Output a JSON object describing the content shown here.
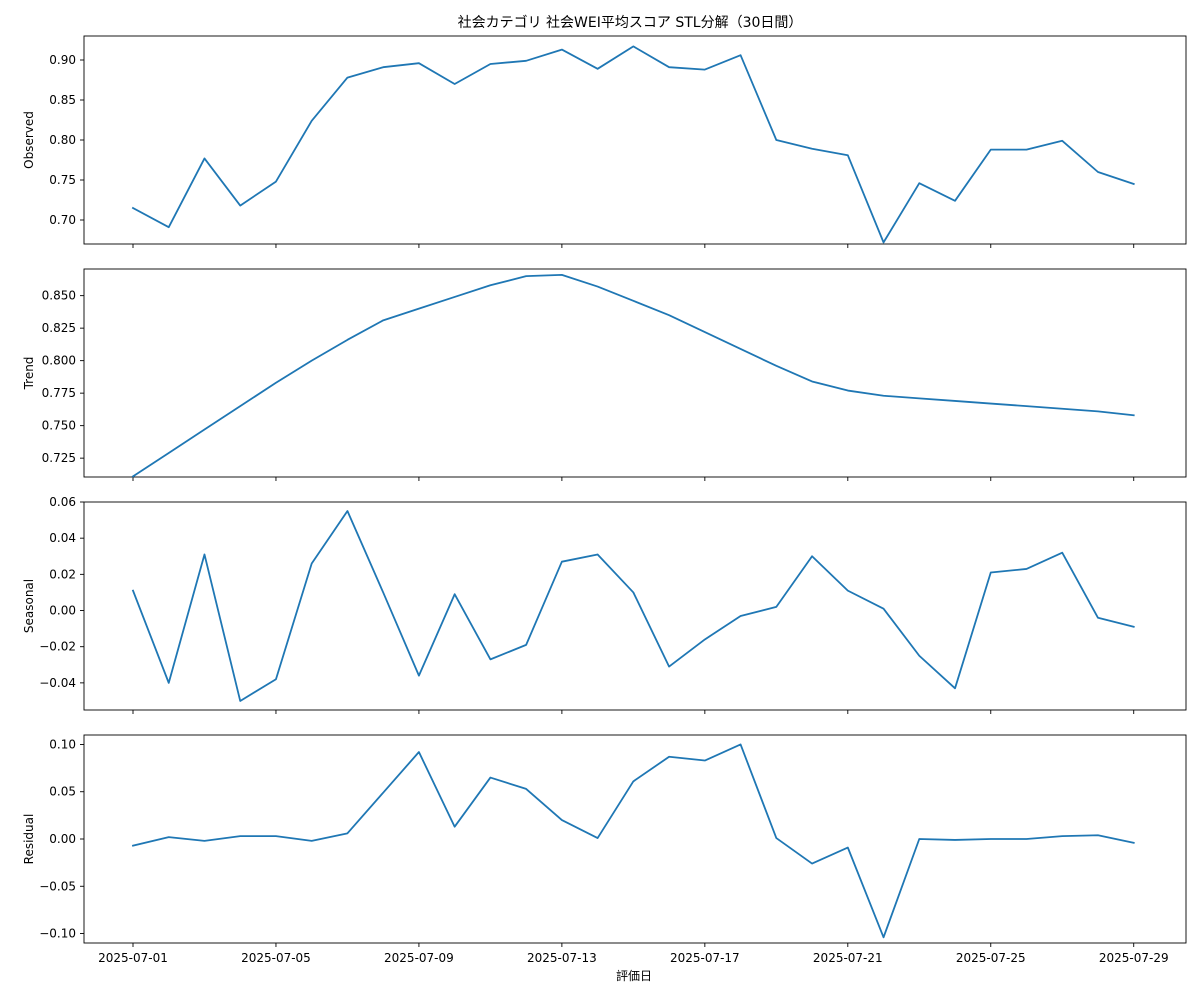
{
  "chart_data": {
    "type": "line",
    "title": "社会カテゴリ 社会WEI平均スコア STL分解（30日間）",
    "xlabel": "評価日",
    "line_color": "#1f77b4",
    "grid": false,
    "x": [
      "2025-07-01",
      "2025-07-02",
      "2025-07-03",
      "2025-07-04",
      "2025-07-05",
      "2025-07-06",
      "2025-07-07",
      "2025-07-08",
      "2025-07-09",
      "2025-07-10",
      "2025-07-11",
      "2025-07-12",
      "2025-07-13",
      "2025-07-14",
      "2025-07-15",
      "2025-07-16",
      "2025-07-17",
      "2025-07-18",
      "2025-07-19",
      "2025-07-20",
      "2025-07-21",
      "2025-07-22",
      "2025-07-23",
      "2025-07-24",
      "2025-07-25",
      "2025-07-26",
      "2025-07-27",
      "2025-07-28",
      "2025-07-29"
    ],
    "x_ticks": [
      "2025-07-01",
      "2025-07-05",
      "2025-07-09",
      "2025-07-13",
      "2025-07-17",
      "2025-07-21",
      "2025-07-25",
      "2025-07-29"
    ],
    "panels": [
      {
        "ylabel": "Observed",
        "ylim": [
          0.67,
          0.93
        ],
        "yticks": [
          "0.70",
          "0.75",
          "0.80",
          "0.85",
          "0.90"
        ],
        "values": [
          0.715,
          0.691,
          0.777,
          0.718,
          0.748,
          0.824,
          0.878,
          0.891,
          0.896,
          0.87,
          0.895,
          0.899,
          0.913,
          0.889,
          0.917,
          0.891,
          0.888,
          0.906,
          0.8,
          0.789,
          0.781,
          0.672,
          0.746,
          0.724,
          0.788,
          0.788,
          0.799,
          0.76,
          0.745
        ]
      },
      {
        "ylabel": "Trend",
        "ylim": [
          0.7105,
          0.8705
        ],
        "yticks": [
          "0.725",
          "0.750",
          "0.775",
          "0.800",
          "0.825",
          "0.850"
        ],
        "values": [
          0.711,
          0.729,
          0.747,
          0.765,
          0.783,
          0.8,
          0.816,
          0.831,
          0.84,
          0.849,
          0.858,
          0.865,
          0.866,
          0.857,
          0.846,
          0.835,
          0.822,
          0.809,
          0.796,
          0.784,
          0.777,
          0.773,
          0.771,
          0.769,
          0.767,
          0.765,
          0.763,
          0.761,
          0.758
        ]
      },
      {
        "ylabel": "Seasonal",
        "ylim": [
          -0.055,
          0.06
        ],
        "yticks": [
          "−0.04",
          "−0.02",
          "0.00",
          "0.02",
          "0.04",
          "0.06"
        ],
        "values": [
          0.011,
          -0.04,
          0.031,
          -0.05,
          -0.038,
          0.026,
          0.055,
          0.01,
          -0.036,
          0.009,
          -0.027,
          -0.019,
          0.027,
          0.031,
          0.01,
          -0.031,
          -0.016,
          -0.003,
          0.002,
          0.03,
          0.011,
          0.001,
          -0.025,
          -0.043,
          0.021,
          0.023,
          0.032,
          -0.004,
          -0.009
        ]
      },
      {
        "ylabel": "Residual",
        "ylim": [
          -0.11,
          0.11
        ],
        "yticks": [
          "−0.10",
          "−0.05",
          "0.00",
          "0.05",
          "0.10"
        ],
        "values": [
          -0.007,
          0.002,
          -0.002,
          0.003,
          0.003,
          -0.002,
          0.006,
          0.049,
          0.092,
          0.013,
          0.065,
          0.053,
          0.02,
          0.001,
          0.061,
          0.087,
          0.083,
          0.1,
          0.001,
          -0.026,
          -0.009,
          -0.104,
          0.0,
          -0.001,
          0.0,
          0.0,
          0.003,
          0.004,
          -0.004
        ]
      }
    ]
  }
}
